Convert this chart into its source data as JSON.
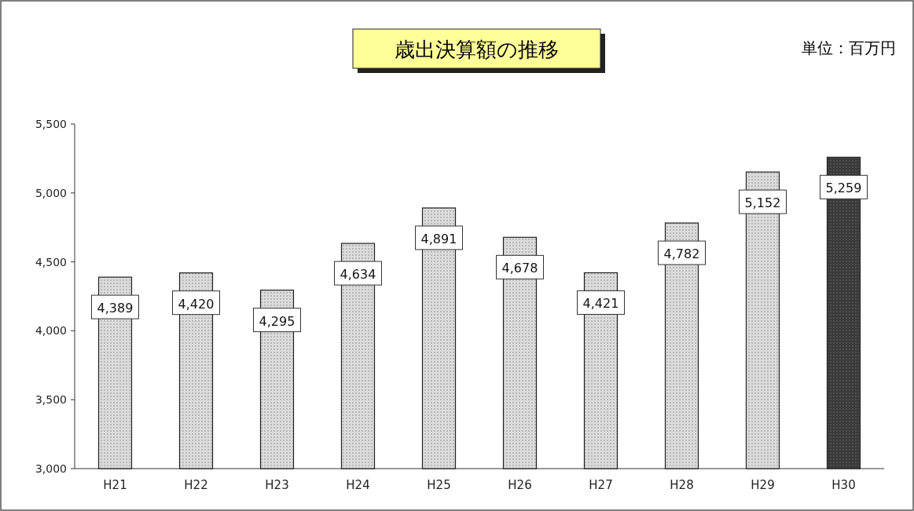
{
  "chart_data": {
    "type": "bar",
    "title": "歳出決算額の推移",
    "annotations": [
      "単位：百万円"
    ],
    "categories": [
      "H21",
      "H22",
      "H23",
      "H24",
      "H25",
      "H26",
      "H27",
      "H28",
      "H29",
      "H30"
    ],
    "values": [
      4389,
      4420,
      4295,
      4634,
      4891,
      4678,
      4421,
      4782,
      5152,
      5259
    ],
    "value_labels": [
      "4,389",
      "4,420",
      "4,295",
      "4,634",
      "4,891",
      "4,678",
      "4,421",
      "4,782",
      "5,152",
      "5,259"
    ],
    "colors": [
      "#dcdcdc",
      "#dcdcdc",
      "#dcdcdc",
      "#dcdcdc",
      "#dcdcdc",
      "#dcdcdc",
      "#dcdcdc",
      "#dcdcdc",
      "#dcdcdc",
      "#3a3a3a"
    ],
    "ylim": [
      3000,
      5500
    ],
    "yticks": [
      {
        "value": 3000,
        "label": "3,000"
      },
      {
        "value": 3500,
        "label": "3,500"
      },
      {
        "value": 4000,
        "label": "4,000"
      },
      {
        "value": 4500,
        "label": "4,500"
      },
      {
        "value": 5000,
        "label": "5,000"
      },
      {
        "value": 5500,
        "label": "5,500"
      }
    ]
  }
}
